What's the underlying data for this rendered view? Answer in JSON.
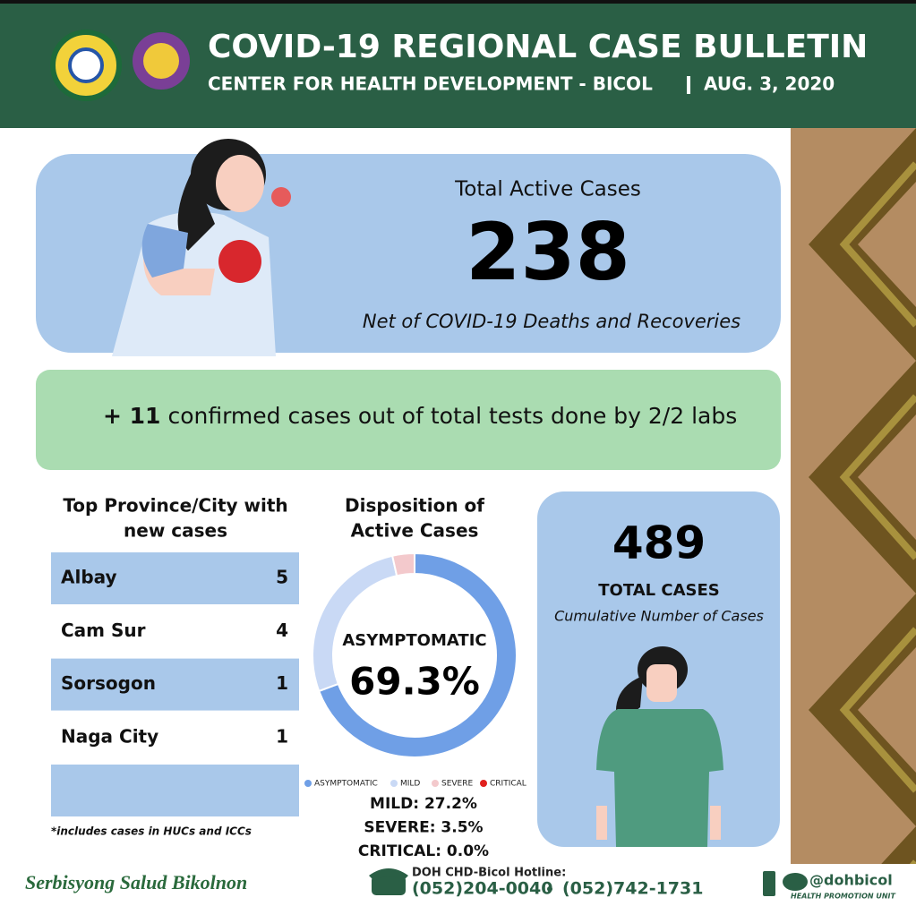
{
  "header": {
    "title": "COVID-19 REGIONAL CASE BULLETIN",
    "organization": "CENTER FOR HEALTH DEVELOPMENT - BICOL",
    "date": "AUG. 3, 2020"
  },
  "active_cases": {
    "label": "Total Active Cases",
    "value": 238,
    "note": "Net of COVID-19 Deaths and Recoveries"
  },
  "confirmed": {
    "count": "+ 11",
    "text": "confirmed cases out of total tests done by 2/2 labs"
  },
  "provinces": {
    "title": [
      "Top Province/City with",
      "new cases"
    ],
    "rows": [
      [
        "Albay",
        5
      ],
      [
        "Cam Sur",
        4
      ],
      [
        "Sorsogon",
        1
      ],
      [
        "Naga City",
        1
      ]
    ],
    "footnote": "*includes cases in HUCs and ICCs"
  },
  "chart_data": {
    "type": "donut",
    "title": [
      "Disposition of",
      "Active Cases"
    ],
    "categories": [
      "ASYMPTOMATIC",
      "MILD",
      "SEVERE",
      "CRITICAL"
    ],
    "values": [
      69.3,
      27.2,
      3.5,
      0.0
    ],
    "value_labels": [
      "69.3%",
      "MILD: 27.2%",
      "SEVERE: 3.5%",
      "CRITICAL: 0.0%"
    ],
    "colors": [
      "#6f9fe6",
      "#c9d9f5",
      "#f3c9cc",
      "#e0201e"
    ]
  },
  "total_cases": {
    "value": 489,
    "label": "TOTAL CASES",
    "note": "Cumulative Number of Cases"
  },
  "footer": {
    "slogan": "Serbisyong Salud Bikolnon",
    "hotline_label": "DOH CHD-Bicol Hotline:",
    "phones": [
      "(052)204-0040",
      "(052)742-1731"
    ],
    "social": "@dohbicol",
    "unit": "HEALTH PROMOTION UNIT"
  }
}
